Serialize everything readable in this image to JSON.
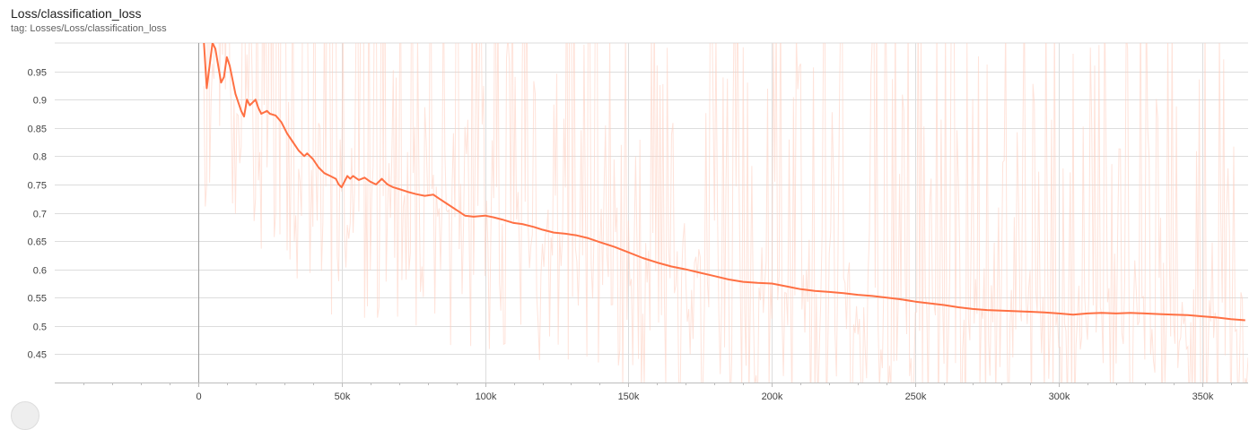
{
  "header": {
    "title": "Loss/classification_loss",
    "tag": "tag: Losses/Loss/classification_loss"
  },
  "chart_data": {
    "type": "line",
    "title": "Loss/classification_loss",
    "xlabel": "",
    "ylabel": "",
    "xlim": [
      -50000,
      366000
    ],
    "ylim": [
      0.4,
      1.0
    ],
    "grid": true,
    "x_ticks": [
      0,
      50000,
      100000,
      150000,
      200000,
      250000,
      300000,
      350000
    ],
    "x_tick_labels": [
      "0",
      "50k",
      "100k",
      "150k",
      "200k",
      "250k",
      "300k",
      "350k"
    ],
    "y_ticks": [
      0.45,
      0.5,
      0.55,
      0.6,
      0.65,
      0.7,
      0.75,
      0.8,
      0.85,
      0.9,
      0.95
    ],
    "y_tick_labels": [
      "0.45",
      "0.5",
      "0.55",
      "0.6",
      "0.65",
      "0.7",
      "0.75",
      "0.8",
      "0.85",
      "0.9",
      "0.95"
    ],
    "colors": {
      "smoothed": "#ff7043",
      "raw": "#ffccbc",
      "grid": "#dddddd",
      "zero_axis": "#9e9e9e"
    },
    "series": [
      {
        "x": [
          2000,
          3000,
          4000,
          5000,
          6000,
          8000,
          9000,
          10000,
          11000,
          13000,
          15000,
          16000,
          17000,
          18000,
          20000,
          21000,
          22000,
          24000,
          25000,
          27000,
          29000,
          31000,
          33000,
          35000,
          37000,
          38000,
          40000,
          42000,
          44000,
          46000,
          48000,
          49000,
          50000,
          52000,
          53000,
          54000,
          56000,
          58000,
          60000,
          62000,
          64000,
          65000,
          66000,
          68000,
          70000,
          73000,
          76000,
          79000,
          82000,
          84000,
          87000,
          90000,
          93000,
          96000,
          100000,
          103000,
          106000,
          110000,
          113000,
          117000,
          120000,
          124000,
          128000,
          132000,
          136000,
          140000,
          145000,
          150000,
          155000,
          160000,
          165000,
          170000,
          175000,
          180000,
          185000,
          190000,
          195000,
          200000,
          205000,
          210000,
          215000,
          220000,
          225000,
          230000,
          235000,
          240000,
          245000,
          250000,
          255000,
          260000,
          265000,
          270000,
          275000,
          280000,
          285000,
          290000,
          295000,
          300000,
          305000,
          310000,
          315000,
          320000,
          325000,
          330000,
          335000,
          340000,
          345000,
          350000,
          355000,
          360000,
          365000
        ],
        "values": [
          1.0,
          0.92,
          0.96,
          1.0,
          0.99,
          0.93,
          0.94,
          0.975,
          0.96,
          0.91,
          0.88,
          0.87,
          0.9,
          0.89,
          0.9,
          0.885,
          0.875,
          0.88,
          0.875,
          0.872,
          0.86,
          0.84,
          0.825,
          0.81,
          0.8,
          0.805,
          0.795,
          0.78,
          0.77,
          0.765,
          0.76,
          0.75,
          0.745,
          0.765,
          0.76,
          0.765,
          0.758,
          0.762,
          0.755,
          0.75,
          0.76,
          0.755,
          0.75,
          0.745,
          0.742,
          0.737,
          0.733,
          0.73,
          0.732,
          0.725,
          0.715,
          0.705,
          0.695,
          0.693,
          0.695,
          0.692,
          0.688,
          0.682,
          0.68,
          0.675,
          0.67,
          0.665,
          0.663,
          0.66,
          0.655,
          0.648,
          0.64,
          0.63,
          0.62,
          0.612,
          0.605,
          0.6,
          0.594,
          0.588,
          0.582,
          0.578,
          0.576,
          0.575,
          0.57,
          0.565,
          0.562,
          0.56,
          0.558,
          0.555,
          0.553,
          0.55,
          0.547,
          0.543,
          0.54,
          0.537,
          0.533,
          0.53,
          0.528,
          0.527,
          0.526,
          0.525,
          0.524,
          0.522,
          0.52,
          0.522,
          0.523,
          0.522,
          0.523,
          0.522,
          0.521,
          0.52,
          0.519,
          0.517,
          0.515,
          0.512,
          0.51
        ]
      }
    ]
  }
}
